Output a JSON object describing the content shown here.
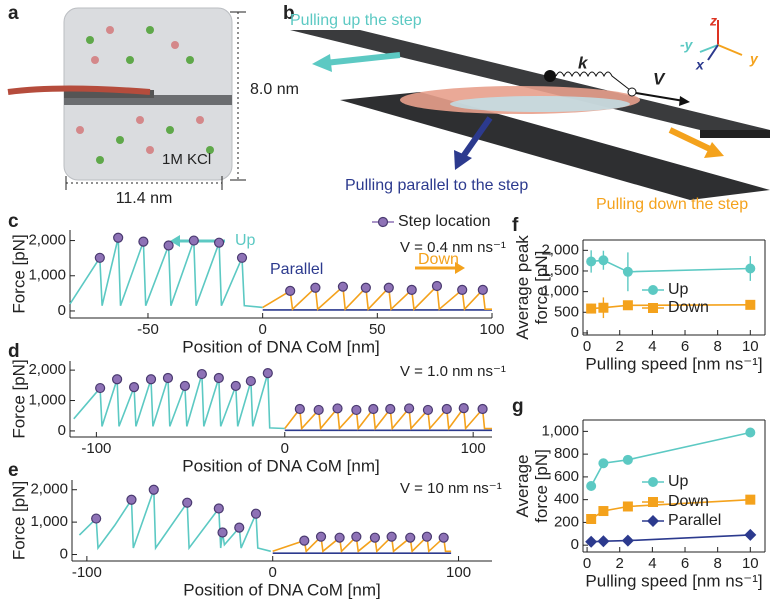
{
  "panel_a": {
    "label": "a",
    "height": "8.0 nm",
    "width": "11.4 nm",
    "salt": "1M KCl"
  },
  "panel_b": {
    "label": "b",
    "up": "Pulling up the step",
    "parallel": "Pulling parallel to the step",
    "down": "Pulling down the step",
    "spring": "k",
    "velocity": "V",
    "axes": {
      "z": "z",
      "minus_y": "-y",
      "y": "y",
      "x": "x"
    }
  },
  "chart_data": [
    {
      "type": "line",
      "label": "c",
      "xlabel": "Position of DNA CoM [nm]",
      "ylabel": "Force [pN]",
      "annotation": "V = 0.4 nm ns⁻¹",
      "xlim": [
        -84,
        100
      ],
      "xticks": [
        -50,
        0,
        50,
        100
      ],
      "ylim": [
        -200,
        2300
      ],
      "yticks": [
        0,
        {
          "value": 1000,
          "label": "1,000"
        },
        {
          "value": 2000,
          "label": "2,000"
        }
      ],
      "series": [
        {
          "name": "Up",
          "color": "#5cc9c3",
          "x": [
            -84,
            -71,
            -70,
            -63,
            -62,
            -52,
            -51,
            -41,
            -40,
            -30,
            -29,
            -19,
            -18,
            -9,
            -8,
            0
          ],
          "values": [
            200,
            1510,
            150,
            2080,
            150,
            1970,
            150,
            1860,
            150,
            2000,
            150,
            1940,
            150,
            1510,
            150,
            100
          ]
        },
        {
          "name": "Parallel",
          "color": "#2c3a8e",
          "x": [
            0,
            100
          ],
          "values": [
            30,
            30
          ]
        },
        {
          "name": "Down",
          "color": "#f4a21c",
          "x": [
            0,
            12,
            13,
            23,
            24,
            35,
            36,
            45,
            46,
            55,
            56,
            65,
            66,
            76,
            77,
            87,
            88,
            96,
            97,
            100
          ],
          "values": [
            100,
            570,
            50,
            660,
            50,
            690,
            50,
            660,
            50,
            660,
            50,
            600,
            50,
            710,
            50,
            600,
            50,
            600,
            50,
            50
          ]
        },
        {
          "name": "Step location",
          "type": "scatter",
          "color": "#8e72b6",
          "x": [
            -71,
            -63,
            -52,
            -41,
            -30,
            -19,
            -9,
            12,
            23,
            35,
            45,
            55,
            65,
            76,
            87,
            96
          ],
          "values": [
            1510,
            2080,
            1970,
            1860,
            2000,
            1940,
            1510,
            570,
            660,
            690,
            660,
            660,
            600,
            710,
            600,
            600
          ]
        }
      ]
    },
    {
      "type": "line",
      "label": "d",
      "xlabel": "Position of DNA CoM [nm]",
      "ylabel": "Force [pN]",
      "annotation": "V = 1.0 nm ns⁻¹",
      "xlim": [
        -114,
        110
      ],
      "xticks": [
        -100,
        0,
        100
      ],
      "ylim": [
        -200,
        2300
      ],
      "yticks": [
        0,
        {
          "value": 1000,
          "label": "1,000"
        },
        {
          "value": 2000,
          "label": "2,000"
        }
      ],
      "series": [
        {
          "color": "#5cc9c3",
          "x": [
            -112,
            -98,
            -97,
            -89,
            -88,
            -80,
            -79,
            -71,
            -70,
            -62,
            -61,
            -53,
            -52,
            -44,
            -43,
            -35,
            -34,
            -26,
            -25,
            -18,
            -17,
            -9,
            -8,
            0
          ],
          "values": [
            400,
            1410,
            150,
            1700,
            150,
            1440,
            150,
            1700,
            150,
            1740,
            150,
            1480,
            150,
            1870,
            150,
            1740,
            150,
            1480,
            150,
            1640,
            150,
            1900,
            100,
            80
          ]
        },
        {
          "color": "#2c3a8e",
          "x": [
            0,
            110
          ],
          "values": [
            20,
            20
          ]
        },
        {
          "color": "#f4a21c",
          "x": [
            0,
            8,
            9,
            18,
            19,
            28,
            29,
            38,
            39,
            47,
            48,
            56,
            57,
            66,
            67,
            76,
            77,
            86,
            87,
            95,
            96,
            105,
            106,
            110
          ],
          "values": [
            80,
            720,
            80,
            690,
            80,
            740,
            80,
            690,
            80,
            720,
            80,
            720,
            80,
            740,
            80,
            690,
            80,
            720,
            80,
            750,
            80,
            720,
            80,
            80
          ]
        },
        {
          "type": "scatter",
          "color": "#8e72b6",
          "x": [
            -98,
            -89,
            -80,
            -71,
            -62,
            -53,
            -44,
            -35,
            -26,
            -18,
            -9,
            8,
            18,
            28,
            38,
            47,
            56,
            66,
            76,
            86,
            95,
            105
          ],
          "values": [
            1410,
            1700,
            1440,
            1700,
            1740,
            1480,
            1870,
            1740,
            1480,
            1640,
            1900,
            720,
            690,
            740,
            690,
            720,
            720,
            740,
            690,
            720,
            750,
            720
          ]
        }
      ]
    },
    {
      "type": "line",
      "label": "e",
      "xlabel": "Position of DNA CoM [nm]",
      "ylabel": "Force [pN]",
      "annotation": "V = 10 nm ns⁻¹",
      "xlim": [
        -108,
        118
      ],
      "xticks": [
        -100,
        0,
        100
      ],
      "ylim": [
        -200,
        2300
      ],
      "yticks": [
        0,
        {
          "value": 1000,
          "label": "1,000"
        },
        {
          "value": 2000,
          "label": "2,000"
        }
      ],
      "series": [
        {
          "color": "#5cc9c3",
          "x": [
            -104,
            -95,
            -94,
            -85,
            -76,
            -75,
            -64,
            -63,
            -46,
            -45,
            -29,
            -28,
            -27,
            -26,
            -18,
            -17,
            -9,
            -8,
            -1
          ],
          "values": [
            600,
            1110,
            200,
            900,
            1690,
            200,
            2000,
            200,
            1600,
            200,
            1420,
            200,
            680,
            300,
            830,
            200,
            1260,
            200,
            100
          ]
        },
        {
          "color": "#2c3a8e",
          "x": [
            0,
            96
          ],
          "values": [
            40,
            40
          ]
        },
        {
          "color": "#f4a21c",
          "x": [
            0,
            17,
            18,
            26,
            27,
            36,
            37,
            45,
            46,
            55,
            56,
            64,
            65,
            74,
            75,
            83,
            84,
            92,
            93,
            96
          ],
          "values": [
            100,
            430,
            100,
            550,
            100,
            520,
            100,
            550,
            100,
            520,
            100,
            550,
            100,
            520,
            100,
            550,
            100,
            520,
            100,
            100
          ]
        },
        {
          "type": "scatter",
          "color": "#8e72b6",
          "x": [
            -95,
            -76,
            -64,
            -46,
            -29,
            -27,
            -18,
            -9,
            17,
            26,
            36,
            45,
            55,
            64,
            74,
            83,
            92
          ],
          "values": [
            1110,
            1690,
            2000,
            1600,
            1420,
            680,
            830,
            1260,
            430,
            550,
            520,
            550,
            520,
            550,
            520,
            550,
            520
          ]
        }
      ]
    },
    {
      "type": "line",
      "label": "f",
      "xlabel": "Pulling speed [nm ns⁻¹]",
      "ylabel": [
        "Average peak",
        "force [pN]"
      ],
      "xlim": [
        -0.25,
        10.9
      ],
      "xticks": [
        0,
        2,
        4,
        6,
        8,
        10
      ],
      "ylim": [
        -50,
        2250
      ],
      "yticks": [
        0,
        500,
        {
          "value": 1000,
          "label": "1,000"
        },
        {
          "value": 1500,
          "label": "1,500"
        },
        {
          "value": 2000,
          "label": "2,000"
        }
      ],
      "series": [
        {
          "name": "Up",
          "color": "#5cc9c3",
          "marker": "circle",
          "x": [
            0.25,
            1,
            2.5,
            10
          ],
          "values": [
            1730,
            1760,
            1480,
            1560
          ],
          "errors": [
            270,
            230,
            470,
            300
          ]
        },
        {
          "name": "Down",
          "color": "#f4a21c",
          "marker": "square",
          "x": [
            0.25,
            1,
            2.5,
            10
          ],
          "values": [
            590,
            610,
            670,
            680
          ],
          "errors": [
            120,
            250,
            60,
            80
          ]
        }
      ]
    },
    {
      "type": "line",
      "label": "g",
      "xlabel": "Pulling speed [nm ns⁻¹]",
      "ylabel": [
        "Average",
        "force [pN]"
      ],
      "xlim": [
        -0.25,
        10.9
      ],
      "xticks": [
        0,
        2,
        4,
        6,
        8,
        10
      ],
      "ylim": [
        -60,
        1100
      ],
      "yticks": [
        0,
        200,
        400,
        600,
        800,
        {
          "value": 1000,
          "label": "1,000"
        }
      ],
      "series": [
        {
          "name": "Up",
          "color": "#5cc9c3",
          "marker": "circle",
          "x": [
            0.25,
            1,
            2.5,
            10
          ],
          "values": [
            520,
            720,
            750,
            990
          ]
        },
        {
          "name": "Down",
          "color": "#f4a21c",
          "marker": "square",
          "x": [
            0.25,
            1,
            2.5,
            10
          ],
          "values": [
            230,
            300,
            340,
            400
          ]
        },
        {
          "name": "Parallel",
          "color": "#2c3a8e",
          "marker": "diamond",
          "x": [
            0.25,
            1,
            2.5,
            10
          ],
          "values": [
            30,
            35,
            40,
            90
          ]
        }
      ]
    }
  ]
}
